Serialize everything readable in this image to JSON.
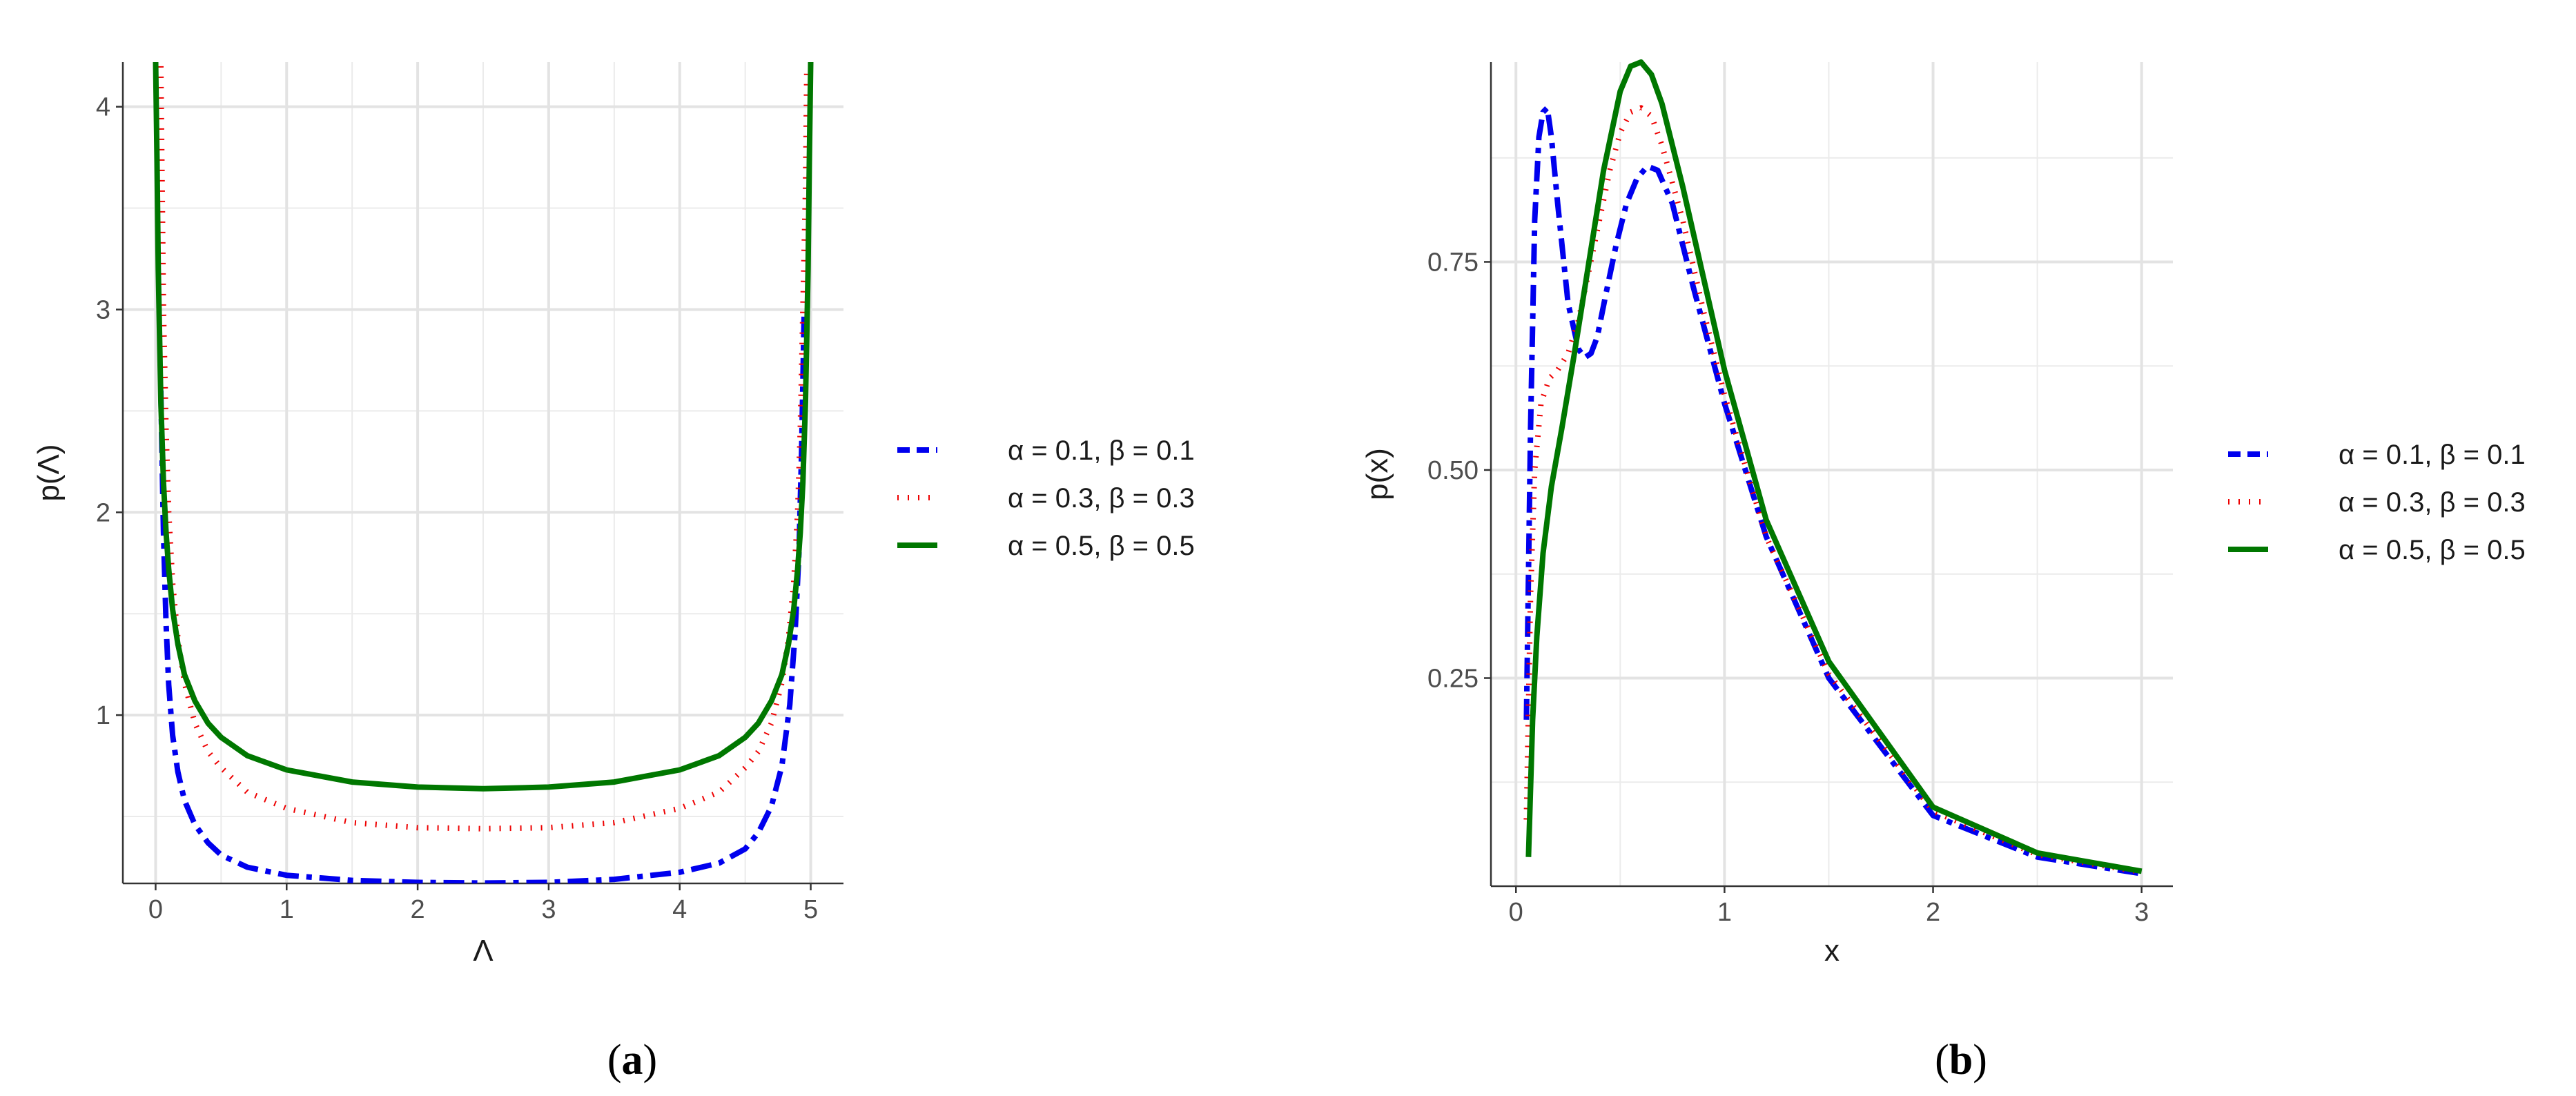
{
  "chart_data": [
    {
      "type": "line",
      "panel_label": {
        "open": "(",
        "letter": "a",
        "close": ")"
      },
      "xlabel": "Λ",
      "ylabel": "p(Λ)",
      "xlim": [
        -0.25,
        5.25
      ],
      "ylim": [
        0.17,
        4.22
      ],
      "x_ticks": [
        0,
        1,
        2,
        3,
        4,
        5
      ],
      "y_ticks": [
        1,
        2,
        3,
        4
      ],
      "grid": true,
      "legend_position": "right",
      "series": [
        {
          "name": "α = 0.1, β = 0.1",
          "color": "#0000ee",
          "dash": "dashdot",
          "x": [
            0.04,
            0.06,
            0.08,
            0.1,
            0.13,
            0.17,
            0.22,
            0.3,
            0.4,
            0.5,
            0.7,
            1.0,
            1.5,
            2.0,
            2.5,
            3.0,
            3.5,
            4.0,
            4.3,
            4.5,
            4.6,
            4.7,
            4.78,
            4.84,
            4.88,
            4.91,
            4.93,
            4.95
          ],
          "y": [
            2.6,
            1.9,
            1.45,
            1.15,
            0.9,
            0.72,
            0.58,
            0.46,
            0.37,
            0.31,
            0.25,
            0.21,
            0.185,
            0.175,
            0.172,
            0.175,
            0.19,
            0.225,
            0.27,
            0.34,
            0.42,
            0.55,
            0.75,
            1.05,
            1.4,
            1.8,
            2.3,
            3.0
          ]
        },
        {
          "name": "α = 0.3, β = 0.3",
          "color": "#ee0000",
          "dash": "dotted",
          "x": [
            0.04,
            0.05,
            0.06,
            0.08,
            0.1,
            0.13,
            0.17,
            0.22,
            0.3,
            0.4,
            0.5,
            0.7,
            1.0,
            1.5,
            2.0,
            2.5,
            3.0,
            3.5,
            4.0,
            4.3,
            4.5,
            4.6,
            4.7,
            4.78,
            4.83,
            4.87,
            4.9,
            4.92,
            4.94,
            4.96,
            4.97
          ],
          "y": [
            4.2,
            3.6,
            3.0,
            2.4,
            2.0,
            1.65,
            1.38,
            1.16,
            0.96,
            0.82,
            0.74,
            0.62,
            0.54,
            0.47,
            0.445,
            0.44,
            0.445,
            0.47,
            0.54,
            0.62,
            0.74,
            0.82,
            0.96,
            1.16,
            1.38,
            1.65,
            2.0,
            2.4,
            3.0,
            3.6,
            4.2
          ]
        },
        {
          "name": "α = 0.5, β = 0.5",
          "color": "#007700",
          "dash": "solid",
          "x": [
            0.0,
            0.01,
            0.02,
            0.04,
            0.06,
            0.08,
            0.1,
            0.13,
            0.17,
            0.22,
            0.3,
            0.4,
            0.5,
            0.7,
            1.0,
            1.5,
            2.0,
            2.5,
            3.0,
            3.5,
            4.0,
            4.3,
            4.5,
            4.6,
            4.7,
            4.78,
            4.83,
            4.87,
            4.9,
            4.92,
            4.94,
            4.96,
            4.98,
            4.99,
            5.0
          ],
          "y": [
            4.22,
            3.75,
            3.2,
            2.55,
            2.15,
            1.9,
            1.72,
            1.52,
            1.35,
            1.2,
            1.07,
            0.96,
            0.89,
            0.8,
            0.73,
            0.67,
            0.645,
            0.637,
            0.645,
            0.67,
            0.73,
            0.8,
            0.89,
            0.96,
            1.07,
            1.2,
            1.35,
            1.52,
            1.72,
            1.9,
            2.15,
            2.55,
            3.2,
            3.75,
            4.22
          ]
        }
      ]
    },
    {
      "type": "line",
      "panel_label": {
        "open": "(",
        "letter": "b",
        "close": ")"
      },
      "xlabel": "x",
      "ylabel": "p(x)",
      "xlim": [
        -0.12,
        3.15
      ],
      "ylim": [
        0.0,
        0.99
      ],
      "x_ticks": [
        0,
        1,
        2,
        3
      ],
      "y_ticks": [
        0.25,
        0.5,
        0.75
      ],
      "y_tick_labels": [
        "0.25",
        "0.50",
        "0.75"
      ],
      "grid": true,
      "legend_position": "right",
      "series": [
        {
          "name": "α = 0.1, β = 0.1",
          "color": "#0000ee",
          "dash": "dashdot",
          "x": [
            0.05,
            0.07,
            0.09,
            0.11,
            0.13,
            0.15,
            0.17,
            0.2,
            0.25,
            0.3,
            0.33,
            0.36,
            0.39,
            0.43,
            0.48,
            0.53,
            0.58,
            0.63,
            0.68,
            0.75,
            0.85,
            1.0,
            1.2,
            1.5,
            2.0,
            2.5,
            3.0
          ],
          "y": [
            0.2,
            0.55,
            0.8,
            0.9,
            0.93,
            0.935,
            0.9,
            0.82,
            0.7,
            0.645,
            0.635,
            0.64,
            0.66,
            0.71,
            0.77,
            0.82,
            0.85,
            0.865,
            0.86,
            0.82,
            0.72,
            0.58,
            0.42,
            0.25,
            0.085,
            0.035,
            0.015
          ]
        },
        {
          "name": "α = 0.3, β = 0.3",
          "color": "#ee0000",
          "dash": "dotted",
          "x": [
            0.05,
            0.07,
            0.09,
            0.12,
            0.16,
            0.2,
            0.25,
            0.3,
            0.35,
            0.4,
            0.45,
            0.5,
            0.55,
            0.6,
            0.65,
            0.7,
            0.8,
            0.9,
            1.0,
            1.2,
            1.5,
            2.0,
            2.5,
            3.0
          ],
          "y": [
            0.08,
            0.35,
            0.5,
            0.58,
            0.61,
            0.62,
            0.64,
            0.68,
            0.74,
            0.8,
            0.86,
            0.905,
            0.93,
            0.935,
            0.925,
            0.89,
            0.8,
            0.69,
            0.59,
            0.42,
            0.255,
            0.09,
            0.038,
            0.017
          ]
        },
        {
          "name": "α = 0.5, β = 0.5",
          "color": "#007700",
          "dash": "solid",
          "x": [
            0.06,
            0.08,
            0.1,
            0.13,
            0.17,
            0.22,
            0.28,
            0.35,
            0.42,
            0.5,
            0.55,
            0.6,
            0.65,
            0.7,
            0.8,
            0.9,
            1.0,
            1.2,
            1.5,
            2.0,
            2.5,
            3.0
          ],
          "y": [
            0.035,
            0.2,
            0.3,
            0.4,
            0.48,
            0.55,
            0.64,
            0.75,
            0.86,
            0.955,
            0.985,
            0.99,
            0.975,
            0.94,
            0.84,
            0.73,
            0.62,
            0.44,
            0.27,
            0.095,
            0.04,
            0.018
          ]
        }
      ]
    }
  ]
}
